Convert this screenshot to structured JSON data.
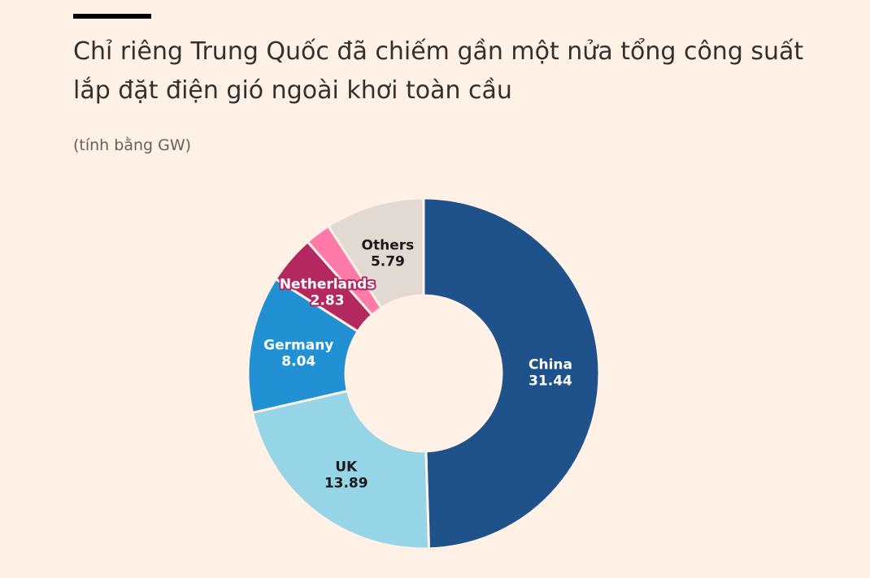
{
  "header": {
    "title": "Chỉ riêng Trung Quốc đã chiếm gần một nửa tổng công suất lắp đặt điện gió ngoài khơi toàn cầu",
    "subtitle": "(tính bằng GW)"
  },
  "chart_data": {
    "type": "pie",
    "variant": "donut",
    "title": "Chỉ riêng Trung Quốc đã chiếm gần một nửa tổng công suất lắp đặt điện gió ngoài khơi toàn cầu",
    "subtitle": "(tính bằng GW)",
    "legend": "none",
    "slices": [
      {
        "name": "China",
        "value": 31.44,
        "value_label": "31.44",
        "color": "#1f528a",
        "label_color": "#ffffff",
        "label_outline": false
      },
      {
        "name": "UK",
        "value": 13.89,
        "value_label": "13.89",
        "color": "#96d4e8",
        "label_color": "#1a1a1a",
        "label_outline": false
      },
      {
        "name": "Germany",
        "value": 8.04,
        "value_label": "8.04",
        "color": "#2291d3",
        "label_color": "#ffffff",
        "label_outline": false
      },
      {
        "name": "Netherlands",
        "value": 2.83,
        "value_label": "2.83",
        "color": "#b3285f",
        "label_color": "#ffffff",
        "label_outline": true
      },
      {
        "name": "",
        "value": 1.5,
        "value_label": "",
        "color": "#ff7aa8",
        "label_color": "#1a1a1a",
        "label_outline": false
      },
      {
        "name": "Others",
        "value": 5.79,
        "value_label": "5.79",
        "color": "#e3d9d3",
        "label_color": "#1a1a1a",
        "label_outline": false
      }
    ]
  }
}
